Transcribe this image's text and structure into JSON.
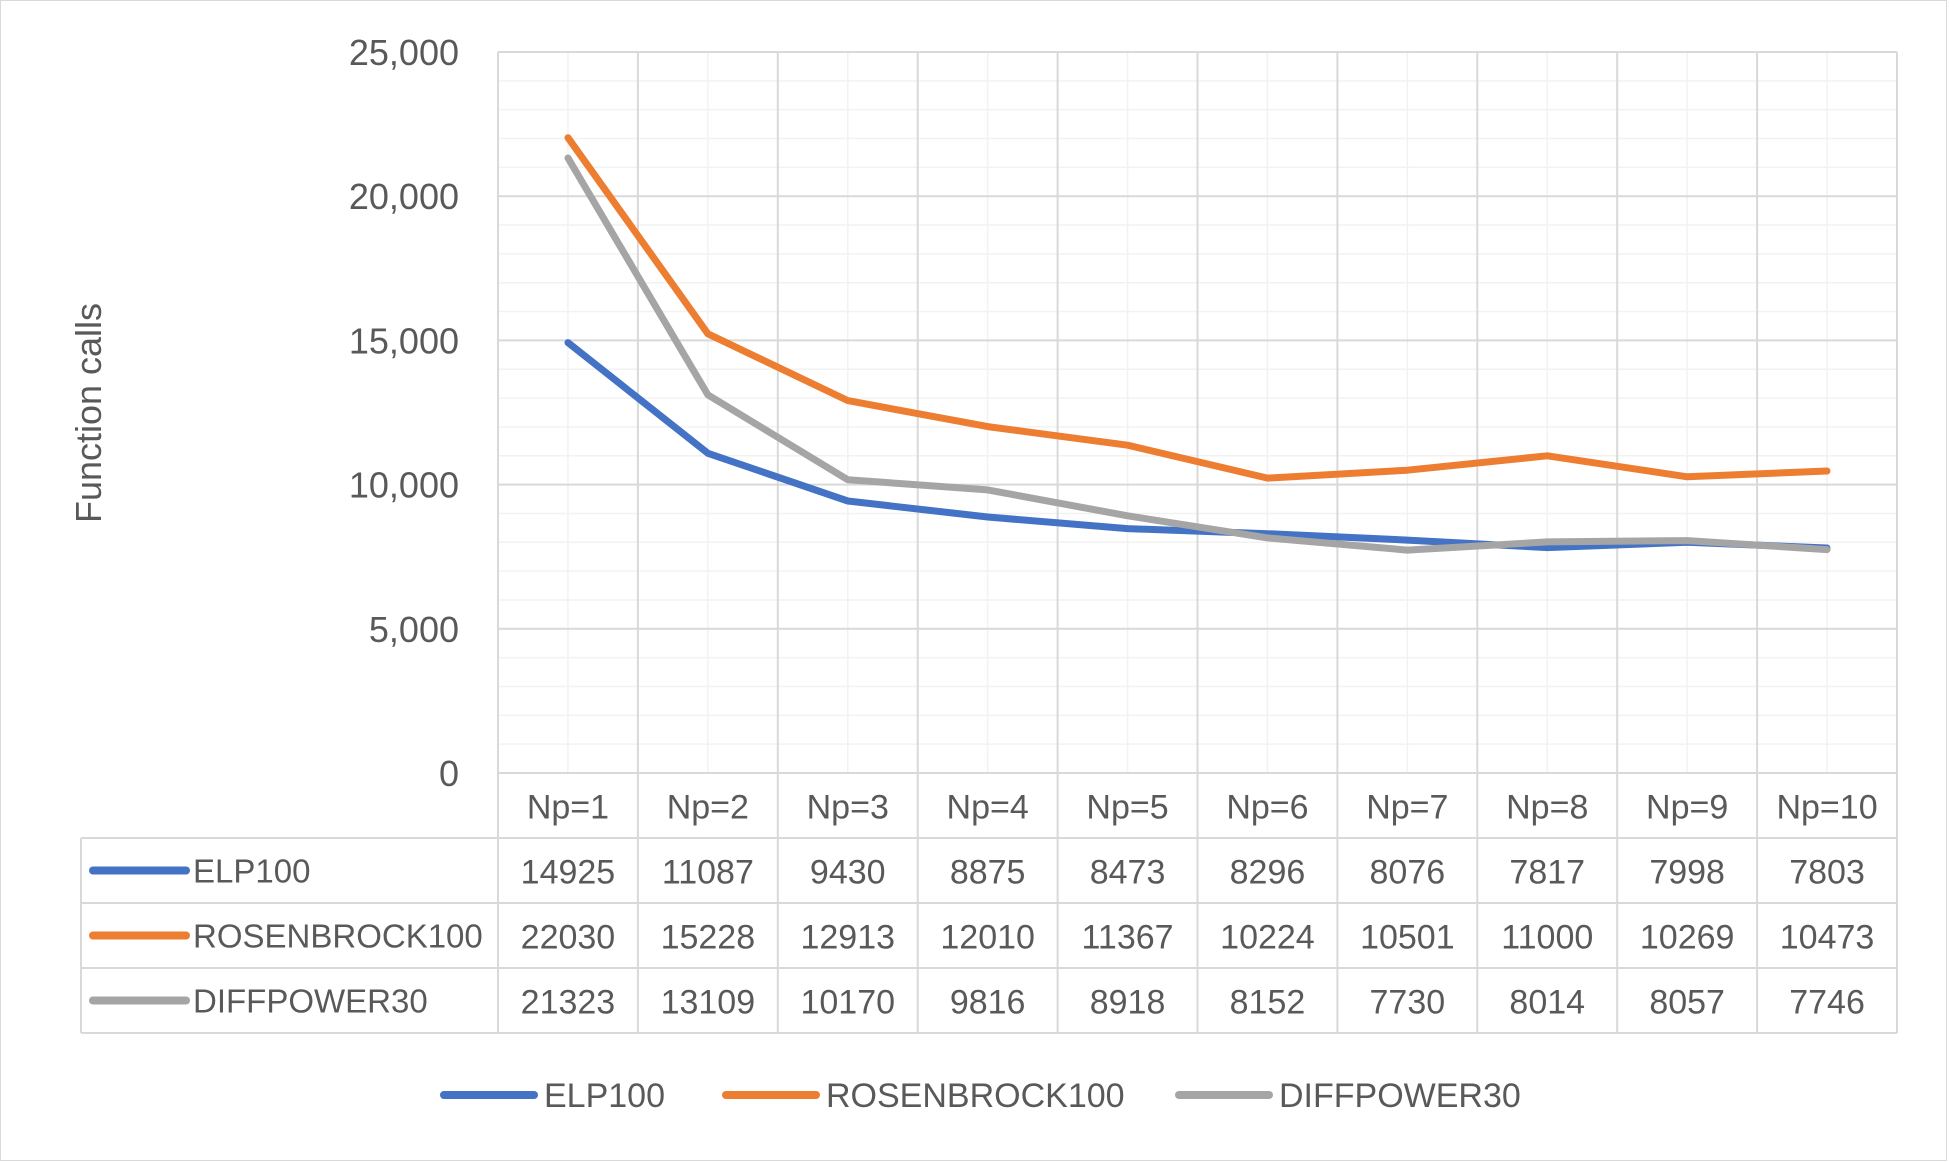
{
  "chart_data": {
    "type": "line",
    "title": "",
    "xlabel": "",
    "ylabel": "Function calls",
    "ylim": [
      0,
      25000
    ],
    "y_ticks": [
      {
        "value": 0,
        "label": "0"
      },
      {
        "value": 5000,
        "label": "5,000"
      },
      {
        "value": 10000,
        "label": "10,000"
      },
      {
        "value": 15000,
        "label": "15,000"
      },
      {
        "value": 20000,
        "label": "20,000"
      },
      {
        "value": 25000,
        "label": "25,000"
      }
    ],
    "categories": [
      "Np=1",
      "Np=2",
      "Np=3",
      "Np=4",
      "Np=5",
      "Np=6",
      "Np=7",
      "Np=8",
      "Np=9",
      "Np=10"
    ],
    "series": [
      {
        "name": "ELP100",
        "color": "#4472c4",
        "values": [
          14925,
          11087,
          9430,
          8875,
          8473,
          8296,
          8076,
          7817,
          7998,
          7803
        ]
      },
      {
        "name": "ROSENBROCK100",
        "color": "#ed7d31",
        "values": [
          22030,
          15228,
          12913,
          12010,
          11367,
          10224,
          10501,
          11000,
          10269,
          10473
        ]
      },
      {
        "name": "DIFFPOWER30",
        "color": "#a5a5a5",
        "values": [
          21323,
          13109,
          10170,
          9816,
          8918,
          8152,
          7730,
          8014,
          8057,
          7746
        ]
      }
    ],
    "grid": {
      "major": true,
      "minor": true
    },
    "data_table": true,
    "legend_position": "bottom"
  }
}
